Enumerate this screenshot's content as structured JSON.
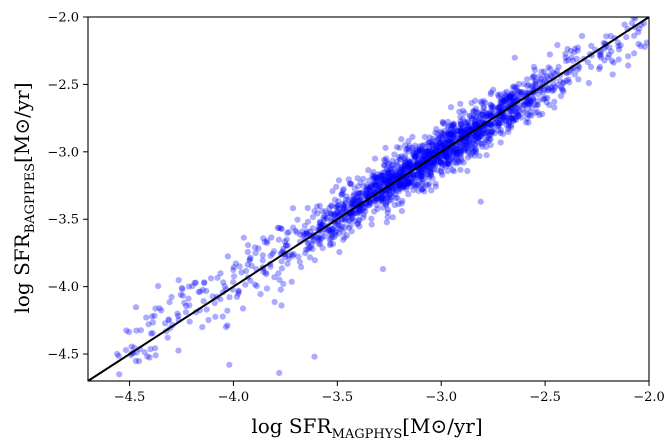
{
  "chart_data": {
    "type": "scatter",
    "xlabel": {
      "prefix": "log SFR",
      "subscript": "MAGPHYS",
      "suffix": "[M⊙/yr]"
    },
    "ylabel": {
      "prefix": "log SFR",
      "subscript": "BAGPIPES",
      "suffix": "[M⊙/yr]"
    },
    "xlim": [
      -4.7,
      -2.0
    ],
    "ylim": [
      -4.7,
      -2.0
    ],
    "xticks": [
      -4.5,
      -4.0,
      -3.5,
      -3.0,
      -2.5,
      -2.0
    ],
    "yticks": [
      -4.5,
      -4.0,
      -3.5,
      -3.0,
      -2.5,
      -2.0
    ],
    "xtick_labels": [
      "−4.5",
      "−4.0",
      "−3.5",
      "−3.0",
      "−2.5",
      "−2.0"
    ],
    "ytick_labels": [
      "−4.5",
      "−4.0",
      "−3.5",
      "−3.0",
      "−2.5",
      "−2.0"
    ],
    "grid": false,
    "reference_line": {
      "type": "one-to-one",
      "x": [
        -4.7,
        -2.0
      ],
      "y": [
        -4.7,
        -2.0
      ],
      "color": "#000000"
    },
    "point_color": "#0000ff",
    "point_opacity": 0.33,
    "n_points": 1900,
    "fit": {
      "slope": 0.955,
      "intercept": -0.128,
      "scatter": 0.09
    },
    "x_range_of_points": [
      -4.56,
      -2.02
    ],
    "points": [
      [
        -4.56,
        -4.5
      ],
      [
        -4.42,
        -4.23
      ],
      [
        -4.31,
        -4.25
      ],
      [
        -4.18,
        -4.19
      ],
      [
        -4.15,
        -4.3
      ],
      [
        -4.02,
        -4.58
      ],
      [
        -3.97,
        -3.85
      ],
      [
        -3.78,
        -4.64
      ],
      [
        -3.61,
        -4.52
      ],
      [
        -3.28,
        -3.87
      ],
      [
        -2.81,
        -3.37
      ],
      [
        -2.05,
        -2.2
      ],
      [
        -2.01,
        -2.19
      ],
      [
        -2.1,
        -2.36
      ]
    ]
  }
}
